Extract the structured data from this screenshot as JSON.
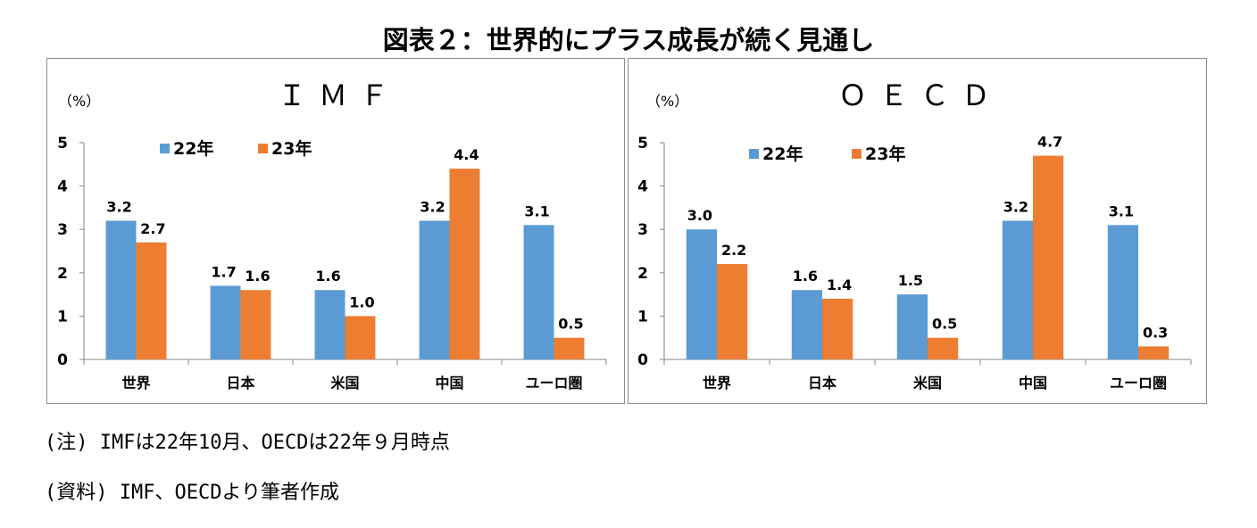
{
  "title": "図表２：世界的にプラス成長が続く見通し",
  "notes": {
    "note1": "(注) IMFは22年10月、OECDは22年９月時点",
    "note2": "(資料) IMF、OECDより筆者作成"
  },
  "colors": {
    "series_22": "#5b9bd5",
    "series_23": "#ed7d31",
    "axis": "#868686"
  },
  "chart_data": [
    {
      "type": "bar",
      "title": "ＩＭＦ",
      "unit_label": "（%）",
      "categories": [
        "世界",
        "日本",
        "米国",
        "中国",
        "ユーロ圏"
      ],
      "series": [
        {
          "name": "22年",
          "values": [
            3.2,
            1.7,
            1.6,
            3.2,
            3.1
          ]
        },
        {
          "name": "23年",
          "values": [
            2.7,
            1.6,
            1.0,
            4.4,
            0.5
          ]
        }
      ],
      "ylim": [
        0,
        5
      ],
      "yticks": [
        0,
        1,
        2,
        3,
        4,
        5
      ],
      "legend": "top-left",
      "grid": false
    },
    {
      "type": "bar",
      "title": "ＯＥＣＤ",
      "unit_label": "（%）",
      "categories": [
        "世界",
        "日本",
        "米国",
        "中国",
        "ユーロ圏"
      ],
      "series": [
        {
          "name": "22年",
          "values": [
            3.0,
            1.6,
            1.5,
            3.2,
            3.1
          ]
        },
        {
          "name": "23年",
          "values": [
            2.2,
            1.4,
            0.5,
            4.7,
            0.3
          ]
        }
      ],
      "ylim": [
        0,
        5
      ],
      "yticks": [
        0,
        1,
        2,
        3,
        4,
        5
      ],
      "legend": "top-left",
      "grid": false
    }
  ]
}
